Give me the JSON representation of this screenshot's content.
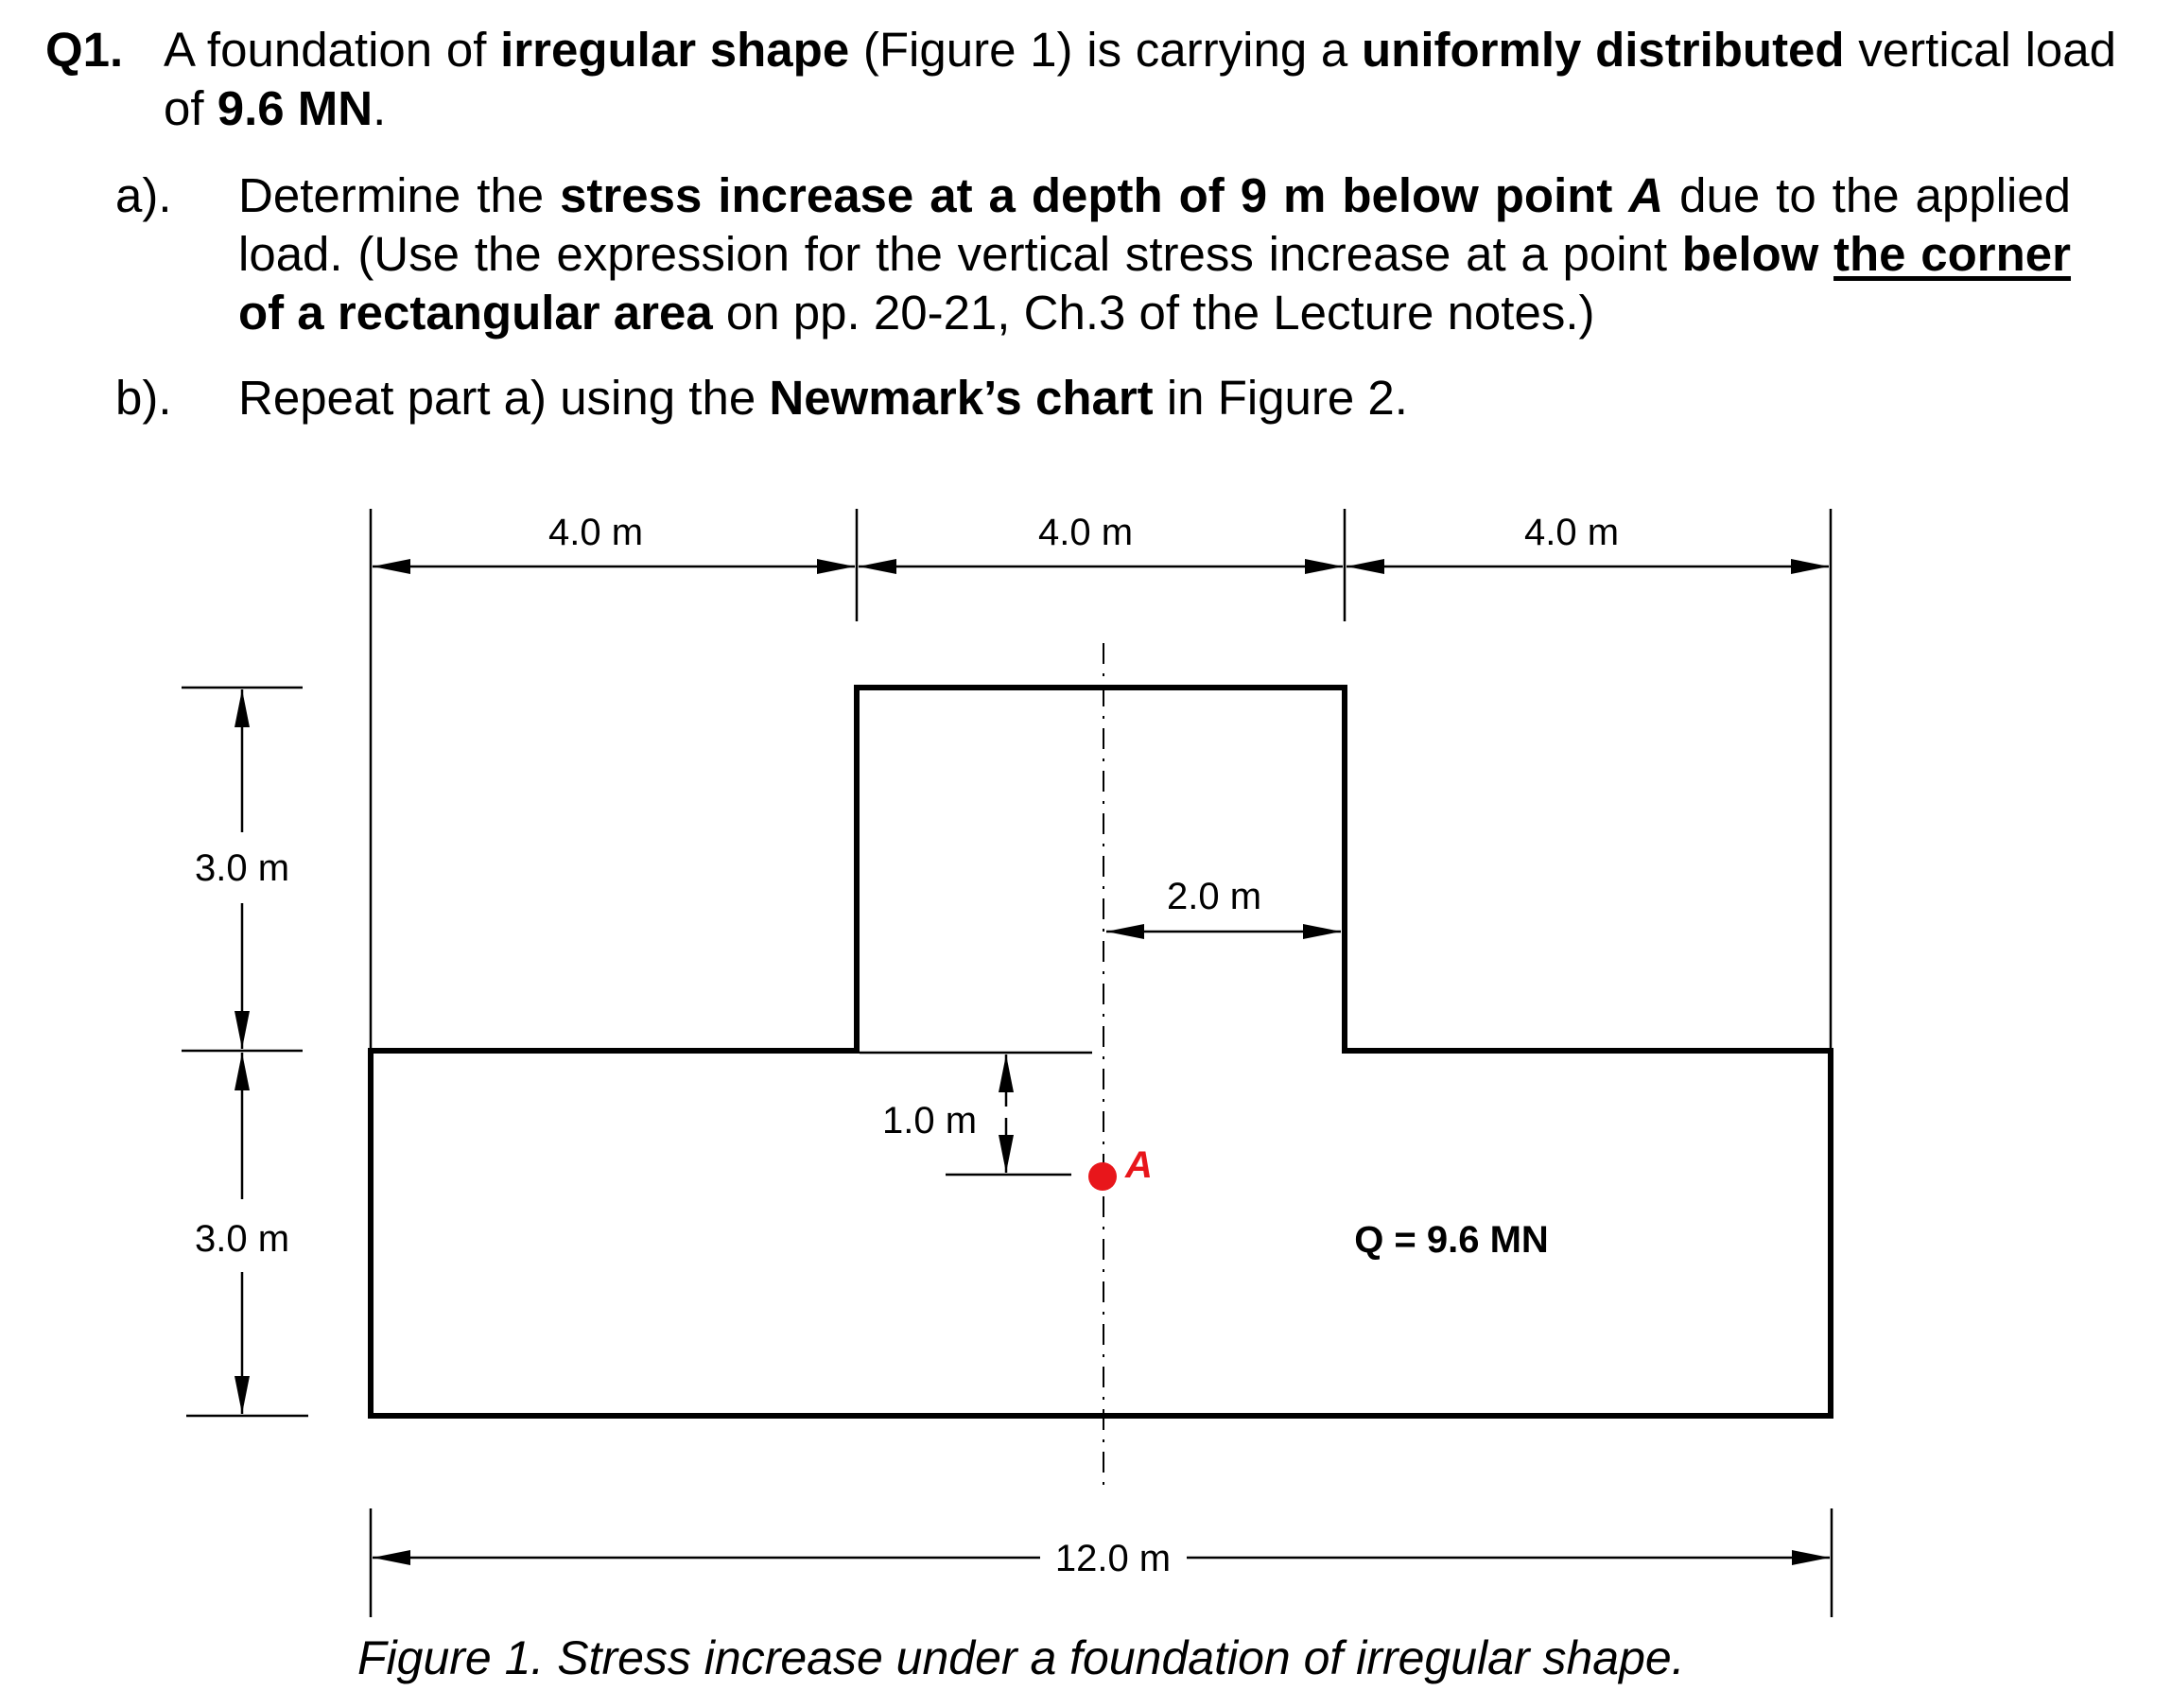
{
  "question": {
    "number": "Q1.",
    "line_1": "A foundation of ",
    "bold_1": "irregular shape",
    "line_2": " (Figure 1) is carrying a ",
    "bold_2": "uniformly distributed",
    "line_3": " vertical load of ",
    "bold_3": "9.6 MN",
    "line_4": "."
  },
  "part_a": {
    "label": "a).",
    "t1": "Determine the ",
    "b1": "stress increase at a depth of 9 m below point ",
    "b1_italic": "A",
    "t2": " due to the applied load. (Use the expression for the vertical stress increase at a point ",
    "b2": "below",
    "b3_underlined": "the corner",
    "b4": " of a rectangular area",
    "t3": " on pp. 20-21, Ch.3 of the Lecture notes.)"
  },
  "part_b": {
    "label": "b).",
    "t1": "Repeat part a) using the ",
    "b1": "Newmark’s chart",
    "t2": " in Figure 2."
  },
  "figure": {
    "dims": {
      "top_left": "4.0 m",
      "top_middle": "4.0 m",
      "top_right": "4.0 m",
      "left_upper": "3.0 m",
      "left_lower": "3.0 m",
      "half_width": "2.0 m",
      "offset": "1.0 m",
      "overall_width": "12.0 m"
    },
    "point_label": "A",
    "load_label": "Q = 9.6 MN",
    "caption": "Figure 1. Stress increase under a foundation of irregular shape.",
    "colors": {
      "point": "#e8161b",
      "lines": "#000000"
    }
  }
}
